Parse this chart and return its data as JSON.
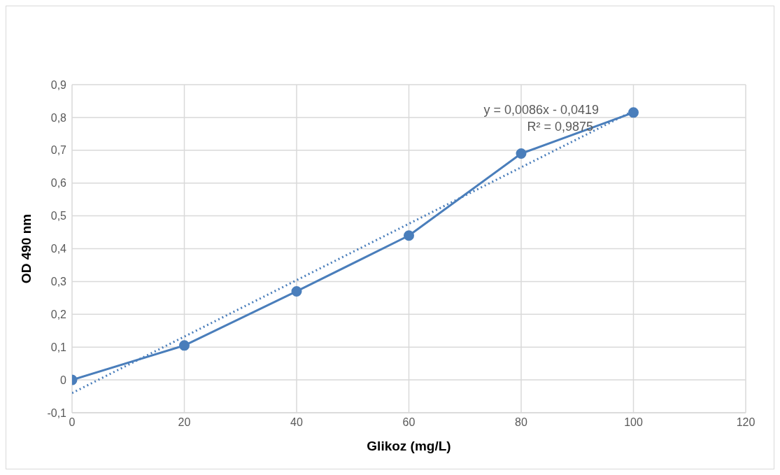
{
  "chart_data": {
    "type": "line",
    "xlabel": "Glikoz (mg/L)",
    "ylabel": "OD 490 nm",
    "xlim": [
      0,
      120
    ],
    "xticks": [
      0,
      20,
      40,
      60,
      80,
      100,
      120
    ],
    "ylim": [
      -0.1,
      0.9
    ],
    "yticks": [
      {
        "value": -0.1,
        "label": "-0,1"
      },
      {
        "value": 0,
        "label": "0"
      },
      {
        "value": 0.1,
        "label": "0,1"
      },
      {
        "value": 0.2,
        "label": "0,2"
      },
      {
        "value": 0.3,
        "label": "0,3"
      },
      {
        "value": 0.4,
        "label": "0,4"
      },
      {
        "value": 0.5,
        "label": "0,5"
      },
      {
        "value": 0.6,
        "label": "0,6"
      },
      {
        "value": 0.7,
        "label": "0,7"
      },
      {
        "value": 0.8,
        "label": "0,8"
      },
      {
        "value": 0.9,
        "label": "0,9"
      }
    ],
    "grid": true,
    "series": [
      {
        "color": "#4a7ebb",
        "x": [
          0,
          20,
          40,
          60,
          80,
          100
        ],
        "values": [
          0,
          0.105,
          0.27,
          0.44,
          0.69,
          0.815
        ],
        "marker": "circle",
        "line_style": "solid"
      },
      {
        "type": "line",
        "color": "#4a7ebb",
        "x": [
          0,
          100
        ],
        "values": [
          -0.04,
          0.82
        ],
        "marker": "none",
        "line_style": "dotted"
      }
    ],
    "annotations": [
      "y = 0,0086x - 0,0419",
      "R² = 0,9875"
    ]
  }
}
